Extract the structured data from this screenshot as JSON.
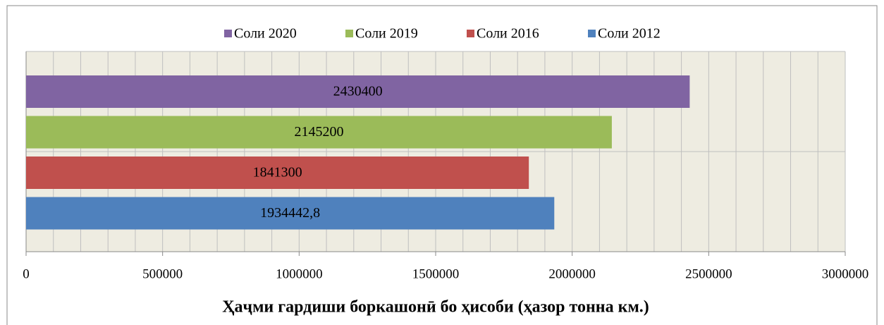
{
  "chart_data": {
    "type": "bar",
    "orientation": "horizontal",
    "x_label": "Ҳаҷми гардиши боркашонӣ бо ҳисоби (ҳазор тонна км.)",
    "series": [
      {
        "name": "Соли 2020",
        "color": "#8064a2",
        "values": [
          2430400
        ]
      },
      {
        "name": "Соли 2019",
        "color": "#9bbb59",
        "values": [
          2145200
        ]
      },
      {
        "name": "Соли 2016",
        "color": "#c0504d",
        "values": [
          1841300
        ]
      },
      {
        "name": "Соли 2012",
        "color": "#4f81bd",
        "values": [
          1934442.8
        ],
        "value_labels": [
          "1934442,8"
        ]
      }
    ],
    "xlim": [
      0,
      3000000
    ],
    "xticks": [
      0,
      500000,
      1000000,
      1500000,
      2000000,
      2500000,
      3000000
    ],
    "grid": true,
    "legend": "top"
  }
}
